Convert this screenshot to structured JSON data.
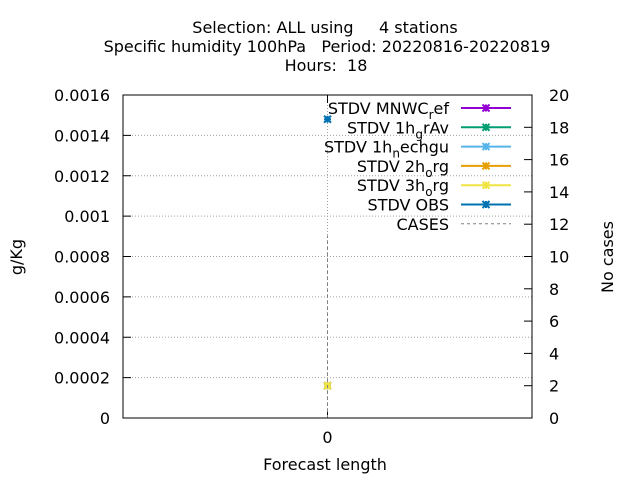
{
  "chart_data": {
    "type": "line",
    "title_lines": [
      "Selection: ALL using     4 stations",
      "Specific humidity 100hPa   Period: 20220816-20220819",
      "Hours:  18"
    ],
    "xlabel": "Forecast length",
    "ylabel": "g/Kg",
    "y2label": "No cases",
    "x_ticks": [
      "0"
    ],
    "x": [
      0
    ],
    "xlim": [
      -1,
      1
    ],
    "ylim": [
      0,
      0.0016
    ],
    "y_ticks": [
      "0",
      "0.0002",
      "0.0004",
      "0.0006",
      "0.0008",
      "0.001",
      "0.0012",
      "0.0014",
      "0.0016"
    ],
    "y2lim": [
      0,
      20
    ],
    "y2_ticks": [
      "0",
      "2",
      "4",
      "6",
      "8",
      "10",
      "12",
      "14",
      "16",
      "18",
      "20"
    ],
    "grid": true,
    "legend_position": "top-right",
    "series": [
      {
        "name": "STDV MNWC",
        "sub": "r",
        "tail": "ef",
        "color": "#9400d3",
        "values": [
          0.00016
        ],
        "axis": "y"
      },
      {
        "name": "STDV 1h",
        "sub": "g",
        "tail": "rAv",
        "color": "#009e73",
        "values": [
          0.00016
        ],
        "axis": "y"
      },
      {
        "name": "STDV 1h",
        "sub": "n",
        "tail": "echgu",
        "color": "#56b4e9",
        "values": [
          0.00016
        ],
        "axis": "y"
      },
      {
        "name": "STDV 2h",
        "sub": "o",
        "tail": "rg",
        "color": "#e69f00",
        "values": [
          0.00016
        ],
        "axis": "y"
      },
      {
        "name": "STDV 3h",
        "sub": "o",
        "tail": "rg",
        "color": "#f0e442",
        "values": [
          0.00016
        ],
        "axis": "y"
      },
      {
        "name": "STDV OBS",
        "sub": "",
        "tail": "",
        "color": "#0072b2",
        "values": [
          0.00148
        ],
        "axis": "y"
      },
      {
        "name": "CASES",
        "sub": "",
        "tail": "",
        "color": "#808080",
        "values": [
          11.3
        ],
        "axis": "y2",
        "dashed": true
      }
    ]
  }
}
